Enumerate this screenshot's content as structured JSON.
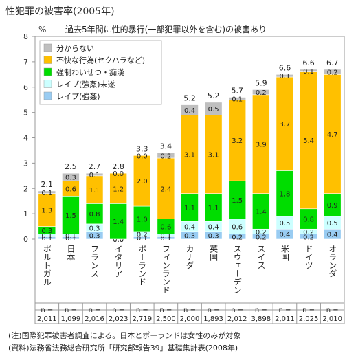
{
  "chart_data": {
    "type": "bar",
    "stacked": true,
    "title": "性犯罪の被害率(2005年)",
    "subtitle": "過去5年間に性的暴行(一部犯罪以外を含む)の被害あり",
    "ylabel": "%",
    "ylim": [
      0,
      8
    ],
    "yticks": [
      0,
      1,
      2,
      3,
      4,
      5,
      6,
      7,
      8
    ],
    "grid": false,
    "legend_position": "top-left",
    "categories": [
      "ポルトガル",
      "日本",
      "フランス",
      "イタリア",
      "ポーランド",
      "フィンランド",
      "カナダ",
      "英国",
      "スウェーデン",
      "スイス",
      "米国",
      "ドイツ",
      "オランダ"
    ],
    "totals": [
      "2.1",
      "2.5",
      "2.7",
      "2.8",
      "3.3",
      "3.4",
      "5.2",
      "5.2",
      "5.7",
      "5.9",
      "6.6",
      "6.6",
      "6.7"
    ],
    "n_prefix": "n =",
    "n_values": [
      "2,011",
      "1,099",
      "2,016",
      "2,023",
      "2,719",
      "2,500",
      "2,000",
      "1,893",
      "2,012",
      "3,898",
      "2,011",
      "2,025",
      "2,010"
    ],
    "series": [
      {
        "name": "レイプ(強姦)",
        "color": "#99ccf2",
        "values": [
          0.1,
          0.1,
          0.3,
          0.0,
          0.1,
          0.1,
          0.3,
          0.3,
          0.2,
          0.2,
          0.4,
          0.2,
          0.4
        ]
      },
      {
        "name": "レイプ(強姦)未遂",
        "color": "#ccffff",
        "values": [
          0.1,
          0.1,
          0.3,
          0.0,
          0.2,
          0.1,
          0.4,
          0.4,
          0.6,
          0.2,
          0.5,
          0.2,
          0.5
        ]
      },
      {
        "name": "強制わいせつ・痴漢",
        "color": "#00dd00",
        "values": [
          0.3,
          1.5,
          0.8,
          1.4,
          1.0,
          0.6,
          1.1,
          1.1,
          1.5,
          1.4,
          1.8,
          0.8,
          0.9
        ]
      },
      {
        "name": "不快な行為(セクハラなど)",
        "color": "#ffc000",
        "values": [
          1.3,
          0.6,
          1.1,
          1.2,
          2.0,
          2.4,
          3.1,
          3.1,
          3.2,
          3.9,
          3.7,
          5.4,
          4.7
        ]
      },
      {
        "name": "分からない",
        "color": "#bfbfbf",
        "values": [
          0.1,
          0.3,
          0.1,
          0.0,
          0.0,
          0.2,
          0.4,
          0.5,
          0.1,
          0.2,
          0.1,
          0.1,
          0.2
        ]
      }
    ]
  },
  "notes": {
    "note": "(注)国際犯罪被害者調査による。日本とポーランドは女性のみが対象",
    "source": "(資料)法務省法務総合研究所「研究部報告39」基礎集計表(2008年)"
  }
}
